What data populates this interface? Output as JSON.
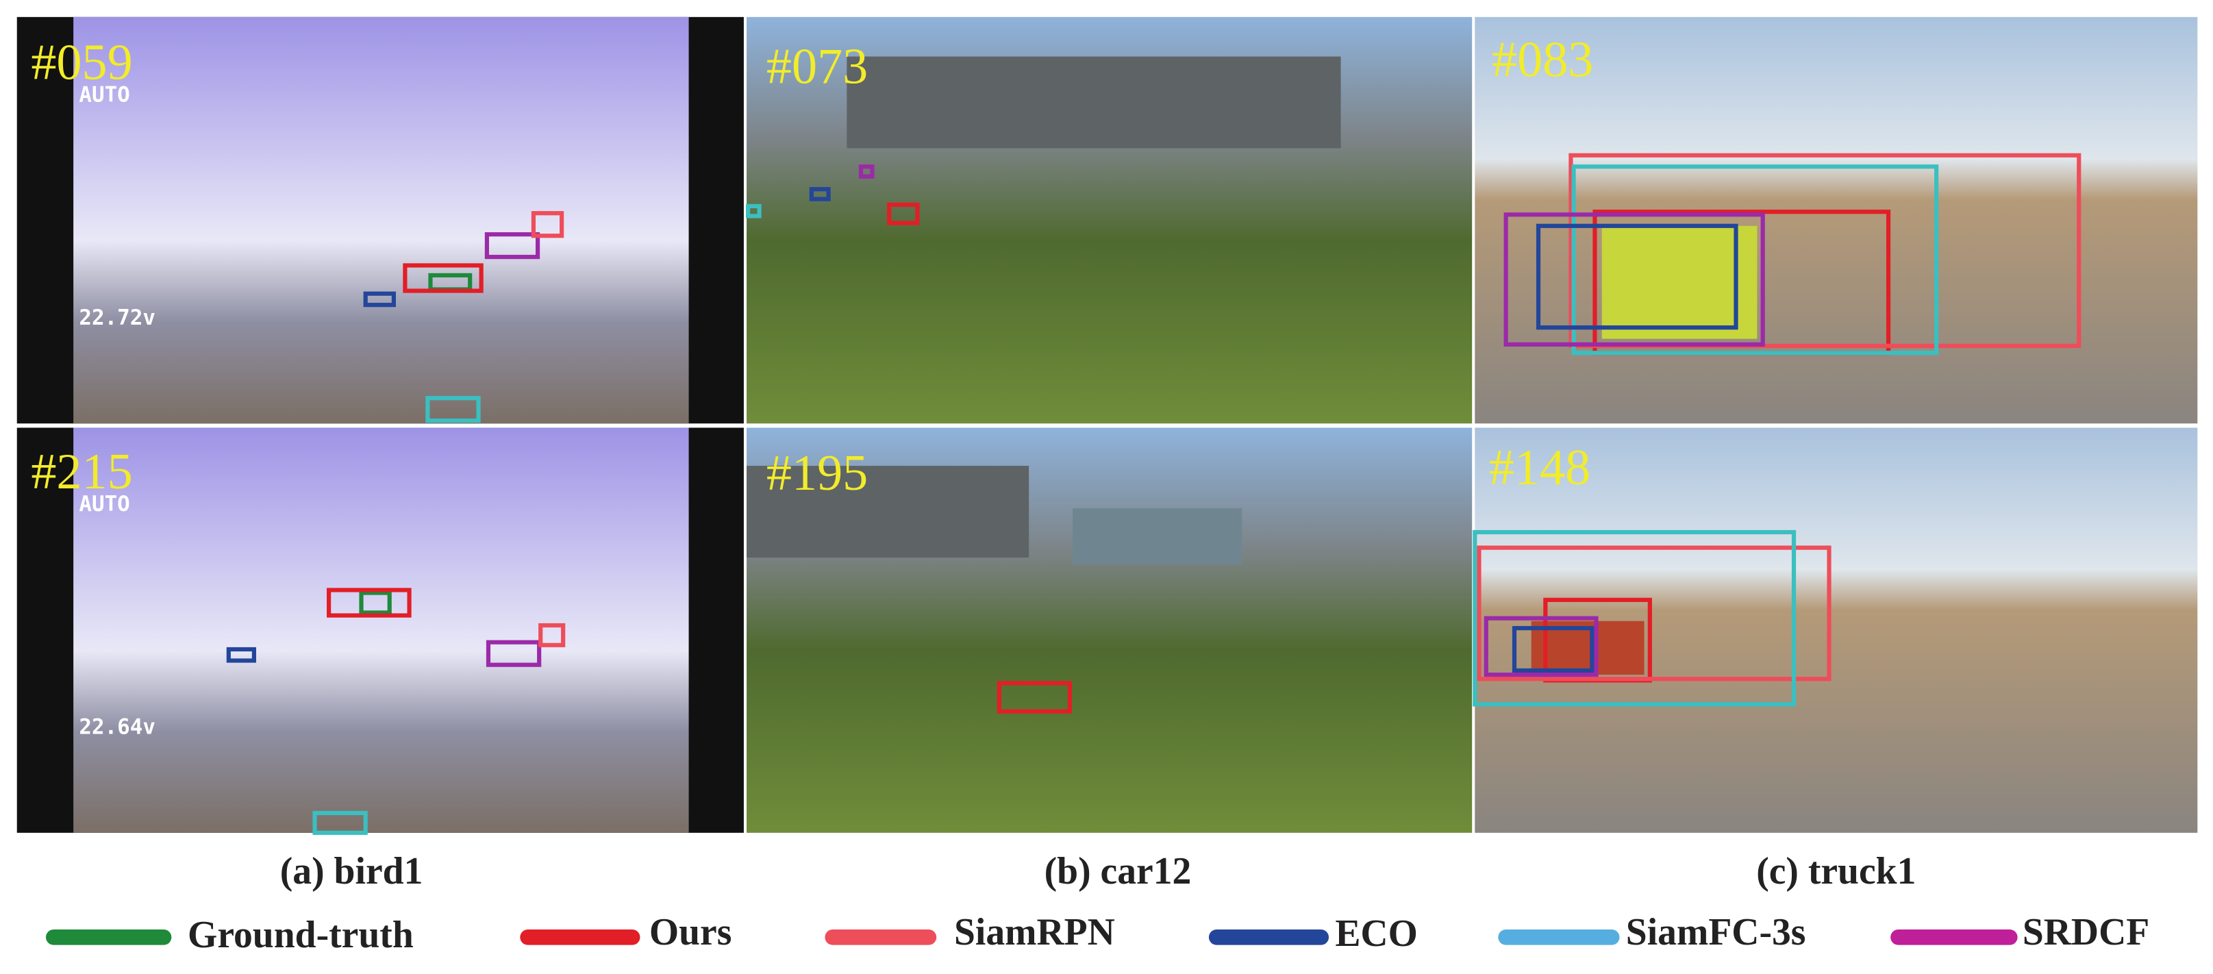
{
  "panels": [
    {
      "caption": "(a) bird1",
      "frames": [
        "#059",
        "#215"
      ]
    },
    {
      "caption": "(b) car12",
      "frames": [
        "#073",
        "#195"
      ]
    },
    {
      "caption": "(c) truck1",
      "frames": [
        "#083",
        "#148"
      ]
    }
  ],
  "legend": [
    "Ground-truth",
    "Ours",
    "SiamRPN",
    "ECO",
    "SiamFC-3s",
    "SRDCF"
  ]
}
